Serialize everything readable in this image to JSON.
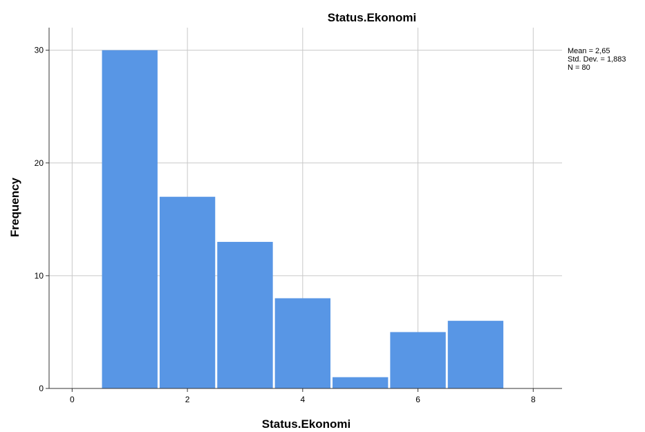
{
  "chart_data": {
    "type": "bar",
    "title": "Status.Ekonomi",
    "xlabel": "Status.Ekonomi",
    "ylabel": "Frequency",
    "bins": [
      {
        "start": 0.5,
        "end": 1.5,
        "value": 30
      },
      {
        "start": 1.5,
        "end": 2.5,
        "value": 17
      },
      {
        "start": 2.5,
        "end": 3.5,
        "value": 13
      },
      {
        "start": 3.5,
        "end": 4.5,
        "value": 8
      },
      {
        "start": 4.5,
        "end": 5.5,
        "value": 1
      },
      {
        "start": 5.5,
        "end": 6.5,
        "value": 5
      },
      {
        "start": 6.5,
        "end": 7.5,
        "value": 6
      }
    ],
    "xlim": [
      -0.4,
      8.5
    ],
    "ylim": [
      0,
      32
    ],
    "xticks": [
      "0",
      "2",
      "4",
      "6",
      "8"
    ],
    "yticks": [
      "0",
      "10",
      "20",
      "30"
    ],
    "grid": true,
    "bar_color": "#5896E5",
    "stats": {
      "mean": "Mean = 2,65",
      "std_dev": "Std. Dev. = 1,883",
      "n": "N = 80"
    }
  }
}
